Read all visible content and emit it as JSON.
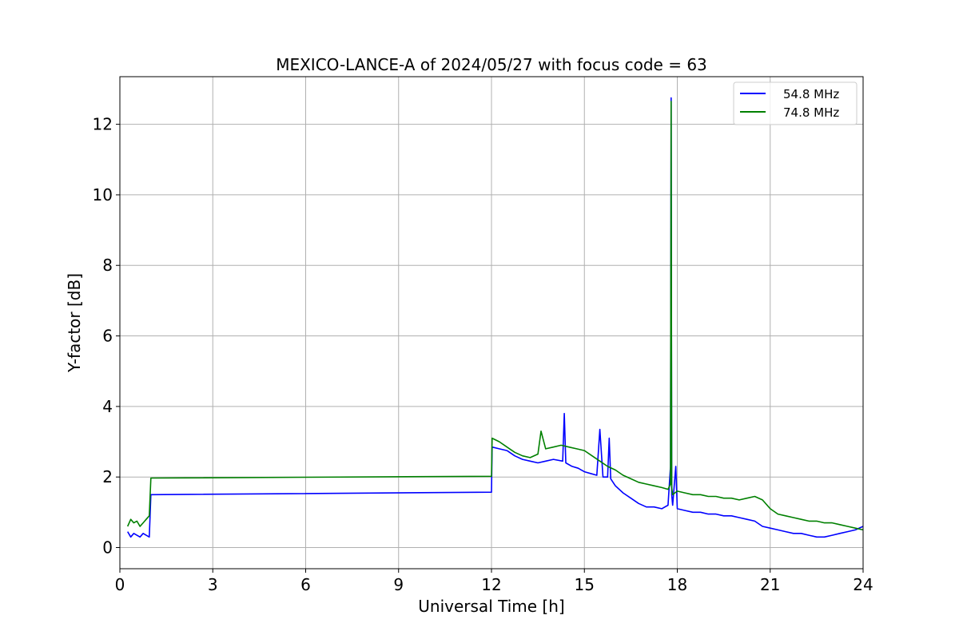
{
  "chart_data": {
    "type": "line",
    "title": "MEXICO-LANCE-A of 2024/05/27 with focus code = 63",
    "xlabel": "Universal Time [h]",
    "ylabel": "Y-factor [dB]",
    "xlim": [
      0,
      24
    ],
    "ylim": [
      -0.6,
      13.35
    ],
    "xticks": [
      0,
      3,
      6,
      9,
      12,
      15,
      18,
      21,
      24
    ],
    "yticks": [
      0,
      2,
      4,
      6,
      8,
      10,
      12
    ],
    "grid": true,
    "legend_position": "top-right",
    "series": [
      {
        "name": "54.8 MHz",
        "color": "#0000ff",
        "x": [
          0.25,
          0.35,
          0.45,
          0.55,
          0.65,
          0.75,
          0.85,
          0.95,
          1.0,
          12.0,
          12.02,
          12.25,
          12.5,
          12.75,
          13.0,
          13.25,
          13.5,
          13.75,
          14.0,
          14.3,
          14.35,
          14.4,
          14.6,
          14.8,
          14.9,
          15.0,
          15.2,
          15.4,
          15.5,
          15.6,
          15.75,
          15.8,
          15.85,
          16.0,
          16.25,
          16.5,
          16.75,
          17.0,
          17.25,
          17.5,
          17.7,
          17.78,
          17.8,
          17.82,
          17.85,
          17.95,
          18.0,
          18.25,
          18.5,
          18.75,
          19.0,
          19.25,
          19.5,
          19.75,
          20.0,
          20.25,
          20.5,
          20.75,
          21.0,
          21.25,
          21.5,
          21.75,
          22.0,
          22.25,
          22.5,
          22.75,
          23.0,
          23.25,
          23.5,
          23.75,
          24.0
        ],
        "y": [
          0.45,
          0.3,
          0.4,
          0.35,
          0.3,
          0.4,
          0.35,
          0.3,
          1.5,
          1.57,
          2.85,
          2.8,
          2.75,
          2.6,
          2.5,
          2.45,
          2.4,
          2.45,
          2.5,
          2.45,
          3.8,
          2.4,
          2.3,
          2.25,
          2.2,
          2.15,
          2.1,
          2.05,
          3.35,
          2.0,
          2.0,
          3.1,
          1.95,
          1.75,
          1.55,
          1.4,
          1.25,
          1.15,
          1.15,
          1.1,
          1.2,
          2.3,
          12.75,
          1.5,
          1.2,
          2.3,
          1.1,
          1.05,
          1.0,
          1.0,
          0.95,
          0.95,
          0.9,
          0.9,
          0.85,
          0.8,
          0.75,
          0.6,
          0.55,
          0.5,
          0.45,
          0.4,
          0.4,
          0.35,
          0.3,
          0.3,
          0.35,
          0.4,
          0.45,
          0.5,
          0.6
        ]
      },
      {
        "name": "74.8 MHz",
        "color": "#008000",
        "x": [
          0.25,
          0.35,
          0.45,
          0.55,
          0.65,
          0.75,
          0.85,
          0.95,
          1.0,
          12.0,
          12.02,
          12.25,
          12.5,
          12.75,
          13.0,
          13.25,
          13.5,
          13.6,
          13.75,
          14.0,
          14.25,
          14.5,
          14.75,
          15.0,
          15.25,
          15.5,
          15.75,
          16.0,
          16.25,
          16.5,
          16.75,
          17.0,
          17.25,
          17.5,
          17.7,
          17.78,
          17.8,
          17.82,
          17.85,
          18.0,
          18.25,
          18.5,
          18.75,
          19.0,
          19.25,
          19.5,
          19.75,
          20.0,
          20.25,
          20.5,
          20.75,
          21.0,
          21.25,
          21.5,
          21.75,
          22.0,
          22.25,
          22.5,
          22.75,
          23.0,
          23.25,
          23.5,
          23.75,
          24.0
        ],
        "y": [
          0.6,
          0.8,
          0.7,
          0.75,
          0.6,
          0.7,
          0.8,
          0.9,
          1.97,
          2.02,
          3.1,
          3.0,
          2.85,
          2.7,
          2.6,
          2.55,
          2.65,
          3.3,
          2.8,
          2.85,
          2.9,
          2.85,
          2.8,
          2.75,
          2.6,
          2.45,
          2.3,
          2.2,
          2.05,
          1.95,
          1.85,
          1.8,
          1.75,
          1.7,
          1.65,
          1.8,
          12.65,
          1.7,
          1.5,
          1.6,
          1.55,
          1.5,
          1.5,
          1.45,
          1.45,
          1.4,
          1.4,
          1.35,
          1.4,
          1.45,
          1.35,
          1.1,
          0.95,
          0.9,
          0.85,
          0.8,
          0.75,
          0.75,
          0.7,
          0.7,
          0.65,
          0.6,
          0.55,
          0.5
        ]
      }
    ]
  }
}
